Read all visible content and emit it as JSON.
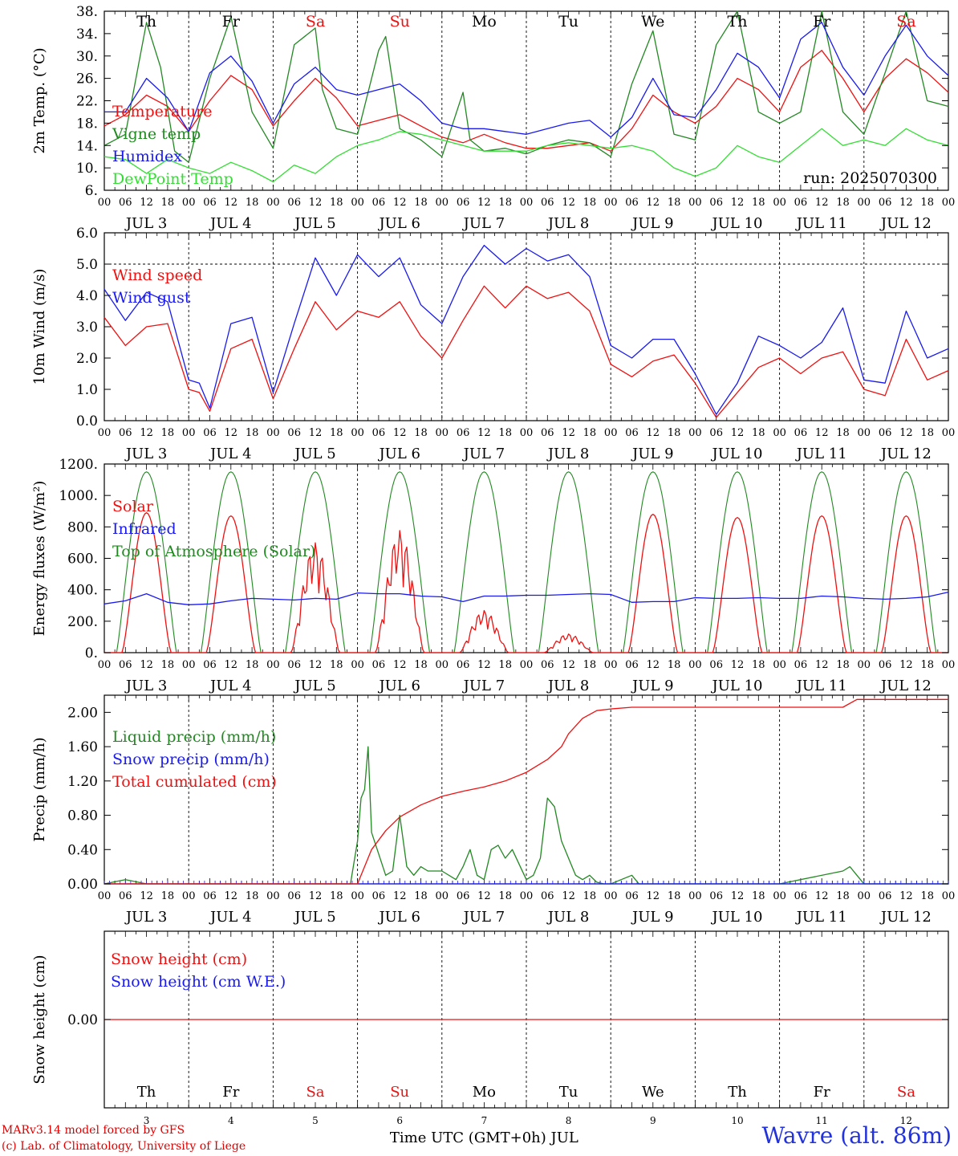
{
  "days": {
    "weekday": [
      "Th",
      "Fr",
      "Sa",
      "Su",
      "Mo",
      "Tu",
      "We",
      "Th",
      "Fr",
      "Sa"
    ],
    "weekend": [
      false,
      false,
      true,
      true,
      false,
      false,
      false,
      false,
      false,
      true
    ],
    "labels": [
      "JUL  3",
      "JUL  4",
      "JUL  5",
      "JUL  6",
      "JUL  7",
      "JUL  8",
      "JUL  9",
      "JUL 10",
      "JUL 11",
      "JUL 12"
    ],
    "day_numbers": [
      "3",
      "4",
      "5",
      "6",
      "7",
      "8",
      "9",
      "10",
      "11",
      "12"
    ],
    "hour_ticks": [
      "00",
      "06",
      "12",
      "18"
    ],
    "end_tick": "00"
  },
  "colors": {
    "red": "#ee1111",
    "green": "#228822",
    "blue": "#1a1aee",
    "light_green": "#33dd33",
    "axis": "#000000"
  },
  "chart_data": [
    {
      "type": "line",
      "id": "temp",
      "ylabel": "2m Temp. (°C)",
      "ylim": [
        6,
        38
      ],
      "yticks": [
        "6.",
        "10.",
        "14.",
        "18.",
        "22.",
        "26.",
        "30.",
        "34.",
        "38."
      ],
      "ytick_values": [
        6,
        10,
        14,
        18,
        22,
        26,
        30,
        34,
        38
      ],
      "x_unit": "hours since JUL 3 00 UTC",
      "annotation": "run: 2025070300",
      "series": [
        {
          "name": "Temperature",
          "color": "red",
          "x": [
            0,
            6,
            12,
            18,
            24,
            30,
            36,
            42,
            48,
            54,
            60,
            66,
            72,
            78,
            84,
            90,
            96,
            102,
            108,
            114,
            120,
            126,
            132,
            138,
            144,
            150,
            156,
            162,
            168,
            174,
            180,
            186,
            192,
            198,
            204,
            210,
            216,
            222,
            228,
            234,
            240
          ],
          "y": [
            17.5,
            19.5,
            23,
            21,
            16.5,
            22,
            26.5,
            24,
            17.5,
            22,
            26,
            22.5,
            17.5,
            18.5,
            19.5,
            17.5,
            15.5,
            14.5,
            16,
            14.5,
            13.5,
            13.5,
            14,
            14.5,
            13,
            17,
            23,
            20,
            18,
            21,
            26,
            24,
            20,
            28,
            31,
            26,
            20,
            26,
            29.5,
            27,
            23.5
          ]
        },
        {
          "name": "Vigne temp",
          "color": "green",
          "x": [
            0,
            6,
            12,
            16,
            20,
            24,
            30,
            36,
            42,
            48,
            54,
            60,
            62,
            66,
            72,
            78,
            80,
            84,
            90,
            96,
            102,
            104,
            108,
            114,
            120,
            126,
            132,
            138,
            144,
            150,
            156,
            162,
            168,
            174,
            180,
            186,
            192,
            198,
            204,
            210,
            216,
            222,
            228,
            234,
            240
          ],
          "y": [
            14,
            16,
            36,
            28,
            13,
            11,
            26,
            37,
            20,
            13.5,
            32,
            35,
            24,
            17,
            16,
            31,
            33.5,
            17,
            15,
            12,
            23.5,
            15,
            13,
            13.5,
            12.5,
            14,
            15,
            14.5,
            12,
            25,
            34.5,
            16,
            15,
            32,
            38,
            20,
            18,
            20,
            38,
            20,
            16,
            27,
            38,
            22,
            21
          ]
        },
        {
          "name": "Humidex",
          "color": "blue",
          "x": [
            0,
            6,
            12,
            18,
            24,
            30,
            36,
            42,
            48,
            54,
            60,
            66,
            72,
            78,
            84,
            90,
            96,
            102,
            108,
            114,
            120,
            126,
            132,
            138,
            144,
            150,
            156,
            162,
            168,
            174,
            180,
            186,
            192,
            198,
            204,
            210,
            216,
            222,
            228,
            234,
            240
          ],
          "y": [
            20,
            20,
            26,
            22.5,
            16.5,
            27,
            30,
            25.5,
            18,
            25,
            28,
            24,
            23,
            24,
            25,
            22,
            18,
            17,
            17,
            16.5,
            16,
            17,
            18,
            18.5,
            15.5,
            19,
            26,
            19.5,
            19,
            24,
            30.5,
            28,
            22.5,
            33,
            36,
            28,
            23,
            30,
            35.5,
            30,
            26.5
          ]
        },
        {
          "name": "DewPoint Temp",
          "color": "light_green",
          "x": [
            0,
            6,
            12,
            18,
            24,
            30,
            36,
            42,
            48,
            54,
            60,
            66,
            72,
            78,
            84,
            90,
            96,
            102,
            108,
            114,
            120,
            126,
            132,
            138,
            144,
            150,
            156,
            162,
            168,
            174,
            180,
            186,
            192,
            198,
            204,
            210,
            216,
            222,
            228,
            234,
            240
          ],
          "y": [
            12,
            11.5,
            9,
            11.5,
            10,
            9,
            11,
            9.5,
            7.5,
            10.5,
            9,
            12,
            14,
            15,
            16.5,
            16,
            15,
            14,
            13,
            13,
            13,
            14,
            14.5,
            14,
            13.5,
            14,
            13,
            10,
            8.5,
            10,
            14,
            12,
            11,
            14,
            17,
            14,
            15,
            14,
            17,
            15,
            14
          ]
        }
      ]
    },
    {
      "type": "line",
      "id": "wind",
      "ylabel": "10m Wind (m/s)",
      "ylim": [
        0,
        6
      ],
      "yticks": [
        "0.0",
        "1.0",
        "2.0",
        "3.0",
        "4.0",
        "5.0",
        "6.0"
      ],
      "ytick_values": [
        0,
        1,
        2,
        3,
        4,
        5,
        6
      ],
      "x_unit": "hours since JUL 3 00 UTC",
      "reference_line": 5.0,
      "series": [
        {
          "name": "Wind speed",
          "color": "red",
          "x": [
            0,
            6,
            12,
            18,
            24,
            27,
            30,
            36,
            42,
            48,
            54,
            60,
            66,
            72,
            78,
            84,
            90,
            96,
            102,
            108,
            114,
            120,
            126,
            132,
            138,
            144,
            150,
            156,
            162,
            168,
            174,
            180,
            186,
            192,
            198,
            204,
            210,
            216,
            222,
            228,
            234,
            240
          ],
          "y": [
            3.3,
            2.4,
            3,
            3.1,
            1,
            0.9,
            0.3,
            2.3,
            2.6,
            0.7,
            2.3,
            3.8,
            2.9,
            3.5,
            3.3,
            3.8,
            2.7,
            2,
            3.2,
            4.3,
            3.6,
            4.3,
            3.9,
            4.1,
            3.5,
            1.8,
            1.4,
            1.9,
            2.1,
            1.2,
            0.1,
            0.9,
            1.7,
            2,
            1.5,
            2,
            2.2,
            1,
            0.8,
            2.6,
            1.3,
            1.6
          ]
        },
        {
          "name": "Wind gust",
          "color": "blue",
          "x": [
            0,
            6,
            12,
            18,
            24,
            27,
            30,
            36,
            42,
            48,
            54,
            60,
            66,
            72,
            78,
            84,
            90,
            96,
            102,
            108,
            114,
            120,
            126,
            132,
            138,
            144,
            150,
            156,
            162,
            168,
            174,
            180,
            186,
            192,
            198,
            204,
            210,
            216,
            222,
            228,
            234,
            240
          ],
          "y": [
            4.2,
            3.2,
            4.1,
            3.8,
            1.3,
            1.2,
            0.4,
            3.1,
            3.3,
            0.9,
            3.1,
            5.2,
            4,
            5.3,
            4.6,
            5.2,
            3.7,
            3.1,
            4.6,
            5.6,
            5,
            5.5,
            5.1,
            5.3,
            4.6,
            2.4,
            2,
            2.6,
            2.6,
            1.5,
            0.2,
            1.2,
            2.7,
            2.4,
            2,
            2.5,
            3.6,
            1.3,
            1.2,
            3.5,
            2,
            2.3
          ]
        }
      ]
    },
    {
      "type": "line",
      "id": "energy",
      "ylabel": "Energy fluxes (W/m²)",
      "ylim": [
        0,
        1200
      ],
      "yticks": [
        "0.",
        "200.",
        "400.",
        "600.",
        "800.",
        "1000.",
        "1200."
      ],
      "ytick_values": [
        0,
        200,
        400,
        600,
        800,
        1000,
        1200
      ],
      "x_unit": "hours since JUL 3 00 UTC",
      "top_of_atmosphere_peak": 1150,
      "solar_daily_peaks": [
        890,
        870,
        700,
        780,
        270,
        120,
        880,
        860,
        870,
        870
      ],
      "series": [
        {
          "name": "Solar",
          "color": "red"
        },
        {
          "name": "Infrared",
          "color": "blue",
          "x": [
            0,
            6,
            12,
            18,
            24,
            30,
            36,
            42,
            48,
            54,
            60,
            66,
            72,
            78,
            84,
            90,
            96,
            102,
            108,
            114,
            120,
            126,
            132,
            138,
            144,
            150,
            156,
            162,
            168,
            174,
            180,
            186,
            192,
            198,
            204,
            210,
            216,
            222,
            228,
            234,
            240
          ],
          "y": [
            310,
            330,
            375,
            320,
            305,
            310,
            330,
            345,
            340,
            335,
            345,
            340,
            380,
            375,
            375,
            360,
            355,
            325,
            360,
            360,
            365,
            365,
            370,
            375,
            370,
            320,
            325,
            325,
            350,
            345,
            345,
            350,
            345,
            345,
            360,
            355,
            345,
            340,
            345,
            355,
            385
          ]
        },
        {
          "name": "Top of Atmosphere (Solar)",
          "color": "green"
        }
      ]
    },
    {
      "type": "line",
      "id": "precip",
      "ylabel": "Precip (mm/h)",
      "ylim": [
        0,
        2.2
      ],
      "yticks": [
        "0.00",
        "0.40",
        "0.80",
        "1.20",
        "1.60",
        "2.00"
      ],
      "ytick_values": [
        0,
        0.4,
        0.8,
        1.2,
        1.6,
        2.0
      ],
      "x_unit": "hours since JUL 3 00 UTC",
      "series": [
        {
          "name": "Liquid precip (mm/h)",
          "color": "green",
          "x": [
            0,
            6,
            12,
            24,
            48,
            70,
            72,
            73,
            74,
            75,
            76,
            78,
            80,
            82,
            84,
            86,
            88,
            90,
            92,
            96,
            100,
            102,
            104,
            106,
            108,
            110,
            112,
            114,
            116,
            120,
            122,
            124,
            126,
            128,
            130,
            132,
            134,
            136,
            138,
            140,
            142,
            144,
            150,
            152,
            154,
            160,
            192,
            210,
            212,
            214,
            216,
            240
          ],
          "y": [
            0,
            0.05,
            0,
            0,
            0,
            0,
            0.5,
            1,
            1.1,
            1.6,
            0.6,
            0.35,
            0.1,
            0.15,
            0.8,
            0.2,
            0.1,
            0.2,
            0.15,
            0.15,
            0.05,
            0.2,
            0.4,
            0.1,
            0.05,
            0.4,
            0.45,
            0.3,
            0.4,
            0.05,
            0.1,
            0.3,
            1,
            0.9,
            0.5,
            0.3,
            0.1,
            0.05,
            0.1,
            0.02,
            0,
            0,
            0.1,
            0,
            0,
            0,
            0,
            0.15,
            0.2,
            0.1,
            0,
            0
          ]
        },
        {
          "name": "Snow precip (mm/h)",
          "color": "blue",
          "x": [
            0,
            240
          ],
          "y": [
            0,
            0
          ]
        },
        {
          "name": "Total cumulated (cm)",
          "color": "red",
          "x": [
            0,
            72,
            76,
            80,
            84,
            90,
            96,
            102,
            108,
            114,
            120,
            126,
            130,
            132,
            136,
            140,
            144,
            150,
            168,
            200,
            210,
            214,
            240
          ],
          "y": [
            0,
            0,
            0.4,
            0.62,
            0.78,
            0.92,
            1.02,
            1.08,
            1.13,
            1.2,
            1.3,
            1.45,
            1.6,
            1.75,
            1.93,
            2.02,
            2.04,
            2.06,
            2.06,
            2.06,
            2.06,
            2.15,
            2.15
          ]
        }
      ]
    },
    {
      "type": "line",
      "id": "snow",
      "ylabel": "Snow height (cm)",
      "ylim": [
        -1,
        1
      ],
      "yticks": [
        "0.00"
      ],
      "ytick_values": [
        0
      ],
      "x_unit": "hours since JUL 3 00 UTC",
      "series": [
        {
          "name": "Snow height (cm)",
          "color": "red",
          "x": [
            0,
            240
          ],
          "y": [
            0,
            0
          ]
        },
        {
          "name": "Snow height (cm W.E.)",
          "color": "blue"
        }
      ]
    }
  ],
  "footer": {
    "xlabel": "Time UTC (GMT+0h) JUL",
    "credit_line1": "MARv3.14 model forced by GFS",
    "credit_line2": "(c) Lab. of Climatology, University of Liege",
    "station": "Wavre (alt. 86m)"
  }
}
